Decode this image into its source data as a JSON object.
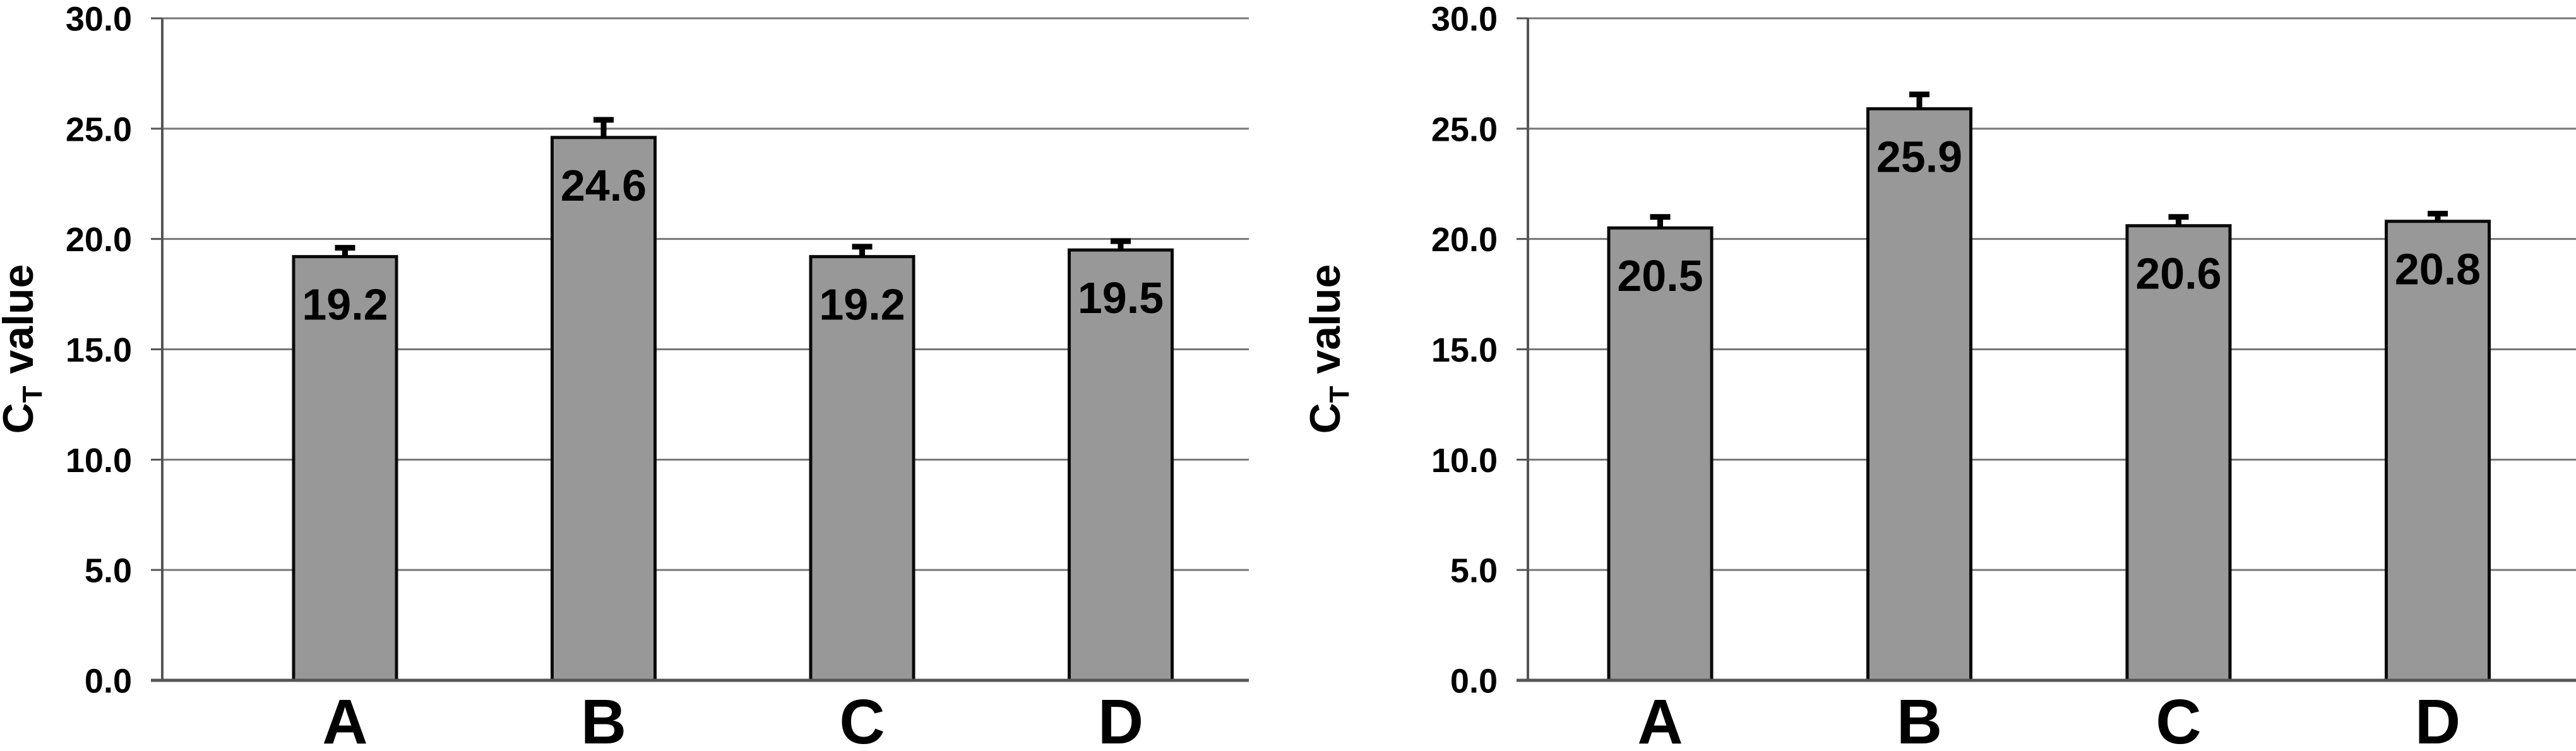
{
  "figure": {
    "description_left_panel": "left",
    "description_right_panel": "right"
  },
  "chart_data": [
    {
      "type": "bar",
      "panel": "left",
      "categories": [
        "A",
        "B",
        "C",
        "D"
      ],
      "values": [
        19.2,
        24.6,
        19.2,
        19.5
      ],
      "value_labels": [
        "19.2",
        "24.6",
        "19.2",
        "19.5"
      ],
      "errors_up": [
        0.4,
        0.8,
        0.45,
        0.4
      ],
      "ylabel_pre": "C",
      "ylabel_sub": "T",
      "ylabel_post": " value",
      "ylim": [
        0,
        30
      ],
      "ytick_step": 5,
      "ytick_labels": [
        "0.0",
        "5.0",
        "10.0",
        "15.0",
        "20.0",
        "25.0",
        "30.0"
      ],
      "grid": true,
      "legend": "none",
      "colors": {
        "bar_fill": "#989898",
        "bar_border": "#0a0a0a",
        "grid": "#777777",
        "axis": "#555555",
        "error": "#000000",
        "text": "#000000",
        "background": "#ffffff"
      }
    },
    {
      "type": "bar",
      "panel": "right",
      "categories": [
        "A",
        "B",
        "C",
        "D"
      ],
      "values": [
        20.5,
        25.9,
        20.6,
        20.8
      ],
      "value_labels": [
        "20.5",
        "25.9",
        "20.6",
        "20.8"
      ],
      "errors_up": [
        0.5,
        0.65,
        0.4,
        0.35
      ],
      "ylabel_pre": "C",
      "ylabel_sub": "T",
      "ylabel_post": " value",
      "ylim": [
        0,
        30
      ],
      "ytick_step": 5,
      "ytick_labels": [
        "0.0",
        "5.0",
        "10.0",
        "15.0",
        "20.0",
        "25.0",
        "30.0"
      ],
      "grid": true,
      "legend": "none",
      "colors": {
        "bar_fill": "#989898",
        "bar_border": "#0a0a0a",
        "grid": "#777777",
        "axis": "#555555",
        "error": "#000000",
        "text": "#000000",
        "background": "#ffffff"
      }
    }
  ]
}
